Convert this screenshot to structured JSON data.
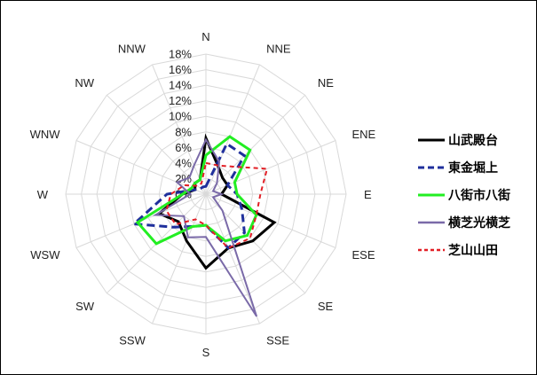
{
  "chart_data": {
    "type": "radar",
    "categories": [
      "N",
      "NNE",
      "NE",
      "ENE",
      "E",
      "ESE",
      "SE",
      "SSE",
      "S",
      "SSW",
      "SW",
      "WSW",
      "W",
      "WNW",
      "NW",
      "NNW"
    ],
    "r_ticks": [
      "0%",
      "2%",
      "4%",
      "6%",
      "8%",
      "10%",
      "12%",
      "14%",
      "16%",
      "18%"
    ],
    "r_max": 18,
    "grid": true,
    "legend_position": "right",
    "series": [
      {
        "name": "山武殿台",
        "color": "#000000",
        "dash": "solid",
        "width": 3,
        "values": [
          7.2,
          4.0,
          3.0,
          3.0,
          2.0,
          9.5,
          8.5,
          7.5,
          9.5,
          6.5,
          5.0,
          6.5,
          3.0,
          1.5,
          2.0,
          2.0
        ]
      },
      {
        "name": "東金堀上",
        "color": "#1f2f9c",
        "dash": "dashed",
        "width": 3,
        "values": [
          1.0,
          7.0,
          7.0,
          3.0,
          4.0,
          5.0,
          7.0,
          7.5,
          4.0,
          4.5,
          6.0,
          10.0,
          5.0,
          1.5,
          1.0,
          1.0
        ]
      },
      {
        "name": "八街市八街",
        "color": "#22ee22",
        "dash": "solid",
        "width": 3,
        "values": [
          5.0,
          8.0,
          8.0,
          4.0,
          4.0,
          7.0,
          7.5,
          6.5,
          4.0,
          4.5,
          9.0,
          9.5,
          3.0,
          2.0,
          2.0,
          2.0
        ]
      },
      {
        "name": "横芝光横芝",
        "color": "#7a6aa8",
        "dash": "solid",
        "width": 2,
        "values": [
          7.0,
          4.5,
          2.0,
          1.0,
          2.0,
          1.0,
          3.0,
          17.0,
          5.5,
          6.0,
          4.0,
          7.0,
          2.0,
          4.0,
          3.0,
          4.0
        ]
      },
      {
        "name": "芝山山田",
        "color": "#e21f26",
        "dash": "dashed",
        "width": 2,
        "values": [
          4.0,
          4.0,
          5.0,
          8.5,
          7.0,
          7.0,
          8.0,
          7.5,
          4.0,
          3.5,
          5.5,
          5.5,
          4.5,
          3.0,
          1.5,
          1.5
        ]
      }
    ]
  }
}
